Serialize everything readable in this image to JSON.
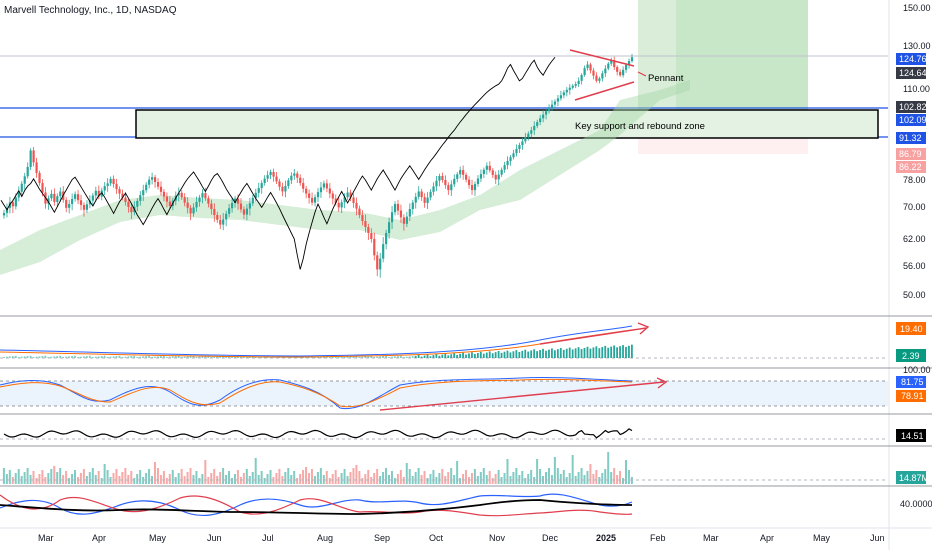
{
  "header": {
    "title": "Marvell Technology, Inc., 1D, NASDAQ"
  },
  "chart_data": {
    "type": "candlestick",
    "title": "Marvell Technology, Inc., 1D, NASDAQ",
    "ylim": [
      45,
      152
    ],
    "y_ticks": [
      "150.00",
      "130.00",
      "110.00",
      "78.00",
      "70.00",
      "62.00",
      "56.00",
      "50.00"
    ],
    "x_ticks": [
      "Mar",
      "Apr",
      "May",
      "Jun",
      "Jul",
      "Aug",
      "Sep",
      "Oct",
      "Nov",
      "Dec",
      "2025",
      "Feb",
      "Mar",
      "Apr",
      "May",
      "Jun"
    ],
    "price_closes": [
      68.5,
      69.8,
      71.4,
      70.2,
      72.8,
      74.5,
      76.9,
      79.3,
      82.6,
      88.4,
      84.2,
      80.5,
      77.1,
      74.3,
      71.0,
      72.6,
      73.9,
      71.5,
      73.2,
      74.6,
      72.1,
      69.8,
      70.9,
      72.4,
      73.8,
      72.0,
      70.6,
      69.3,
      70.8,
      71.9,
      73.4,
      74.8,
      73.1,
      74.9,
      76.2,
      77.0,
      78.4,
      76.8,
      75.3,
      74.0,
      72.8,
      71.5,
      70.0,
      68.7,
      70.1,
      71.8,
      73.5,
      75.0,
      76.6,
      78.1,
      79.0,
      77.4,
      76.0,
      74.5,
      73.1,
      71.6,
      70.3,
      71.9,
      73.4,
      74.2,
      72.9,
      71.3,
      69.8,
      68.4,
      69.9,
      71.5,
      72.8,
      74.1,
      72.6,
      71.0,
      69.5,
      68.0,
      66.8,
      65.6,
      66.9,
      68.3,
      69.7,
      71.2,
      72.5,
      71.0,
      69.4,
      68.1,
      69.6,
      71.1,
      72.7,
      74.2,
      75.6,
      77.1,
      78.5,
      79.7,
      80.8,
      79.2,
      77.6,
      76.0,
      74.6,
      76.2,
      77.9,
      79.5,
      80.3,
      78.8,
      77.1,
      75.4,
      74.0,
      72.7,
      71.3,
      72.9,
      74.4,
      75.8,
      77.0,
      75.5,
      74.0,
      72.5,
      71.2,
      69.9,
      71.4,
      72.9,
      74.3,
      72.8,
      71.2,
      69.6,
      68.0,
      66.5,
      65.0,
      63.5,
      62.0,
      58.5,
      55.5,
      57.8,
      60.9,
      63.5,
      66.2,
      68.7,
      70.9,
      69.1,
      67.4,
      65.8,
      67.6,
      69.5,
      71.3,
      73.0,
      74.6,
      72.9,
      71.2,
      72.8,
      74.5,
      76.1,
      77.8,
      79.4,
      78.0,
      76.5,
      75.0,
      76.7,
      78.4,
      80.0,
      81.5,
      79.8,
      78.1,
      76.5,
      75.0,
      76.8,
      78.5,
      80.1,
      81.6,
      83.0,
      81.4,
      79.8,
      78.2,
      79.9,
      81.6,
      83.2,
      84.7,
      86.0,
      87.4,
      88.9,
      90.3,
      91.6,
      93.0,
      94.3,
      95.5,
      97.0,
      98.4,
      99.7,
      101.0,
      102.2,
      103.4,
      104.5,
      105.6,
      106.7,
      107.8,
      108.8,
      109.7,
      110.6,
      111.5,
      112.3,
      113.8,
      116.5,
      119.7,
      121.4,
      118.6,
      116.2,
      113.8,
      114.9,
      117.3,
      119.5,
      121.8,
      123.4,
      120.2,
      118.0,
      116.4,
      118.9,
      121.2,
      123.0,
      124.76
    ],
    "last_price": "124.76",
    "annotations": [
      "Pennant",
      "Key support and rebound zone"
    ],
    "price_labels": [
      {
        "value": "124.76",
        "color": "#1e53e5"
      },
      {
        "value": "124.64",
        "color": "#363a45"
      },
      {
        "value": "102.82",
        "color": "#363a45"
      },
      {
        "value": "102.09",
        "color": "#1e53e5"
      },
      {
        "value": "91.32",
        "color": "#1e53e5"
      },
      {
        "value": "86.79",
        "color": "#f7a1a1"
      },
      {
        "value": "86.22",
        "color": "#f7a1a1"
      }
    ],
    "indicators": {
      "macd": {
        "labels": [
          "19.40",
          "2.39"
        ],
        "colors": [
          "#ff6d00",
          "#089981"
        ]
      },
      "stochastic": {
        "labels": [
          "100.00",
          "81.75",
          "78.91"
        ],
        "colors": [
          "#131722",
          "#2962ff",
          "#ff6d00"
        ]
      },
      "line_indicator": {
        "labels": [
          "14.51"
        ],
        "colors": [
          "#000000"
        ]
      },
      "volume": {
        "labels": [
          "14.87M"
        ],
        "colors": [
          "#26a69a"
        ]
      },
      "dmi": {
        "labels": [
          "40.0000"
        ],
        "colors": [
          "#131722"
        ]
      }
    },
    "colors": {
      "up": "#26a69a",
      "down": "#ef5350",
      "line": "#000000",
      "support_zone": "#e3f2e3",
      "target_zone": "#c8e6c9",
      "trend_arrow": "#e03e4e"
    }
  }
}
